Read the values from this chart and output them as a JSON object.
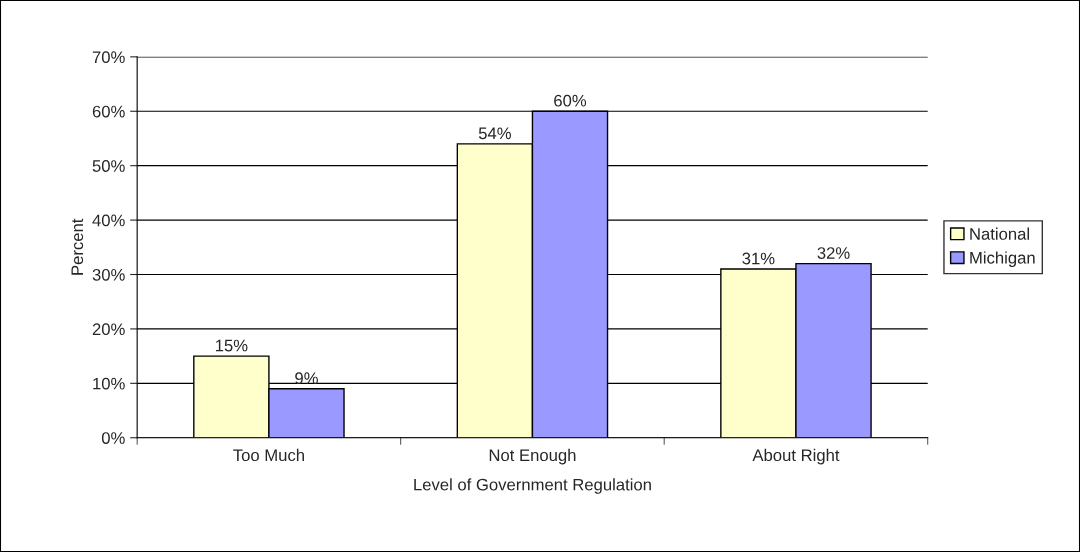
{
  "chart_data": {
    "type": "bar",
    "xlabel": "Level of Government Regulation",
    "ylabel": "Percent",
    "categories": [
      "Too Much",
      "Not Enough",
      "About Right"
    ],
    "series": [
      {
        "name": "National",
        "color": "#ffffcc",
        "values": [
          15,
          54,
          31
        ],
        "value_labels": [
          "15%",
          "54%",
          "31%"
        ]
      },
      {
        "name": "Michigan",
        "color": "#9999ff",
        "values": [
          9,
          60,
          32
        ],
        "value_labels": [
          "9%",
          "60%",
          "32%"
        ]
      }
    ],
    "ylim": [
      0,
      70
    ],
    "yticks": [
      {
        "value": 0,
        "label": "0%"
      },
      {
        "value": 10,
        "label": "10%"
      },
      {
        "value": 20,
        "label": "20%"
      },
      {
        "value": 30,
        "label": "30%"
      },
      {
        "value": 40,
        "label": "40%"
      },
      {
        "value": 50,
        "label": "50%"
      },
      {
        "value": 60,
        "label": "60%"
      },
      {
        "value": 70,
        "label": "70%"
      }
    ],
    "grid": "y",
    "legend": "right"
  }
}
